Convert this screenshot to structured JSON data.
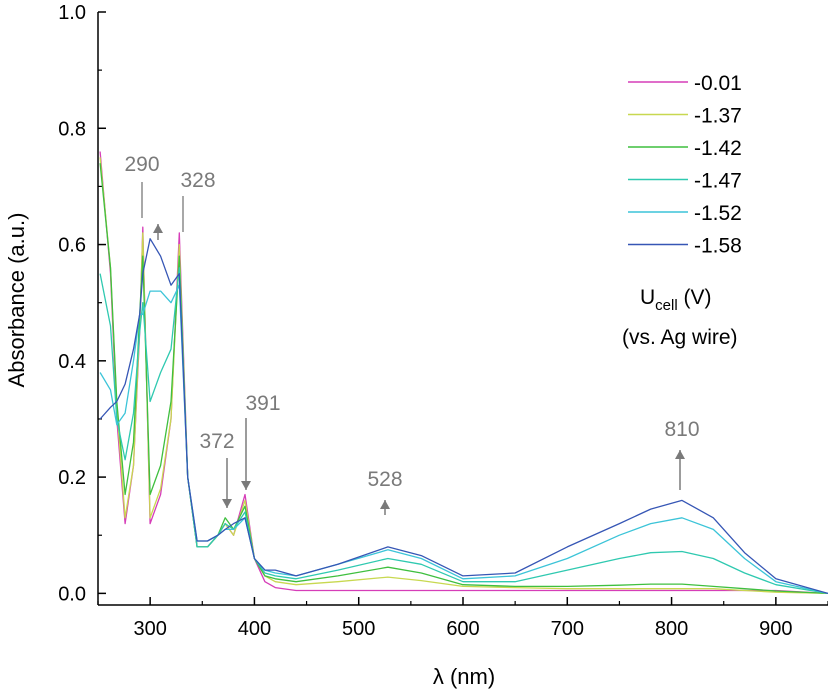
{
  "chart_data": {
    "type": "line",
    "xlabel": "λ (nm)",
    "ylabel": "Absorbance (a.u.)",
    "xlim": [
      250,
      950
    ],
    "ylim": [
      -0.02,
      1.0
    ],
    "x_ticks": [
      300,
      400,
      500,
      600,
      700,
      800,
      900
    ],
    "y_ticks": [
      "0.0",
      "0.2",
      "0.4",
      "0.6",
      "0.8",
      "1.0"
    ],
    "grid": false,
    "legend_position": "top-right",
    "legend_title_main": "U",
    "legend_title_sub": "cell",
    "legend_title_unit": " (V)",
    "legend_subtitle": "(vs. Ag wire)",
    "annotations": [
      {
        "text": "290",
        "x": 290,
        "arrow": "up"
      },
      {
        "text": "328",
        "x": 328,
        "arrow": "none"
      },
      {
        "text": "372",
        "x": 372,
        "arrow": "down"
      },
      {
        "text": "391",
        "x": 391,
        "arrow": "down"
      },
      {
        "text": "528",
        "x": 528,
        "arrow": "up"
      },
      {
        "text": "810",
        "x": 810,
        "arrow": "up"
      }
    ],
    "x": [
      252,
      262,
      268,
      276,
      284,
      290,
      293,
      300,
      310,
      320,
      328,
      336,
      345,
      355,
      365,
      372,
      380,
      391,
      400,
      410,
      420,
      440,
      480,
      528,
      560,
      600,
      650,
      700,
      750,
      780,
      810,
      840,
      870,
      900,
      950
    ],
    "series": [
      {
        "name": "-0.01",
        "color": "#d63db8",
        "values": [
          0.76,
          0.55,
          0.3,
          0.12,
          0.22,
          0.45,
          0.63,
          0.12,
          0.17,
          0.3,
          0.62,
          0.2,
          0.08,
          0.08,
          0.1,
          0.12,
          0.1,
          0.17,
          0.06,
          0.02,
          0.01,
          0.005,
          0.005,
          0.005,
          0.005,
          0.005,
          0.005,
          0.005,
          0.005,
          0.005,
          0.005,
          0.005,
          0.005,
          0.005,
          0.0
        ]
      },
      {
        "name": "-1.37",
        "color": "#c8d850",
        "values": [
          0.75,
          0.56,
          0.32,
          0.13,
          0.22,
          0.46,
          0.62,
          0.13,
          0.18,
          0.3,
          0.6,
          0.2,
          0.08,
          0.08,
          0.1,
          0.12,
          0.1,
          0.16,
          0.06,
          0.03,
          0.02,
          0.015,
          0.02,
          0.028,
          0.022,
          0.012,
          0.01,
          0.008,
          0.008,
          0.008,
          0.008,
          0.008,
          0.005,
          0.002,
          0.0
        ]
      },
      {
        "name": "-1.42",
        "color": "#3fbf3f",
        "values": [
          0.74,
          0.56,
          0.33,
          0.17,
          0.26,
          0.48,
          0.58,
          0.17,
          0.22,
          0.33,
          0.58,
          0.2,
          0.08,
          0.08,
          0.1,
          0.13,
          0.11,
          0.15,
          0.06,
          0.03,
          0.025,
          0.02,
          0.03,
          0.045,
          0.035,
          0.015,
          0.012,
          0.012,
          0.014,
          0.016,
          0.016,
          0.012,
          0.008,
          0.004,
          0.0
        ]
      },
      {
        "name": "-1.47",
        "color": "#2fc9b0",
        "values": [
          0.55,
          0.46,
          0.3,
          0.23,
          0.31,
          0.45,
          0.5,
          0.33,
          0.38,
          0.42,
          0.56,
          0.2,
          0.08,
          0.08,
          0.1,
          0.12,
          0.11,
          0.14,
          0.06,
          0.035,
          0.03,
          0.025,
          0.04,
          0.06,
          0.05,
          0.02,
          0.02,
          0.04,
          0.06,
          0.07,
          0.072,
          0.06,
          0.035,
          0.015,
          0.0
        ]
      },
      {
        "name": "-1.52",
        "color": "#3cc4d8",
        "values": [
          0.38,
          0.35,
          0.29,
          0.31,
          0.4,
          0.48,
          0.48,
          0.52,
          0.52,
          0.5,
          0.53,
          0.2,
          0.09,
          0.09,
          0.1,
          0.11,
          0.11,
          0.13,
          0.06,
          0.04,
          0.035,
          0.03,
          0.05,
          0.075,
          0.06,
          0.025,
          0.03,
          0.06,
          0.1,
          0.12,
          0.13,
          0.11,
          0.06,
          0.02,
          0.0
        ]
      },
      {
        "name": "-1.58",
        "color": "#3656b5",
        "values": [
          0.3,
          0.32,
          0.33,
          0.36,
          0.42,
          0.48,
          0.55,
          0.61,
          0.58,
          0.53,
          0.55,
          0.2,
          0.09,
          0.09,
          0.1,
          0.11,
          0.12,
          0.13,
          0.06,
          0.04,
          0.04,
          0.03,
          0.05,
          0.08,
          0.065,
          0.03,
          0.035,
          0.08,
          0.12,
          0.145,
          0.16,
          0.13,
          0.07,
          0.025,
          0.0
        ]
      }
    ]
  }
}
